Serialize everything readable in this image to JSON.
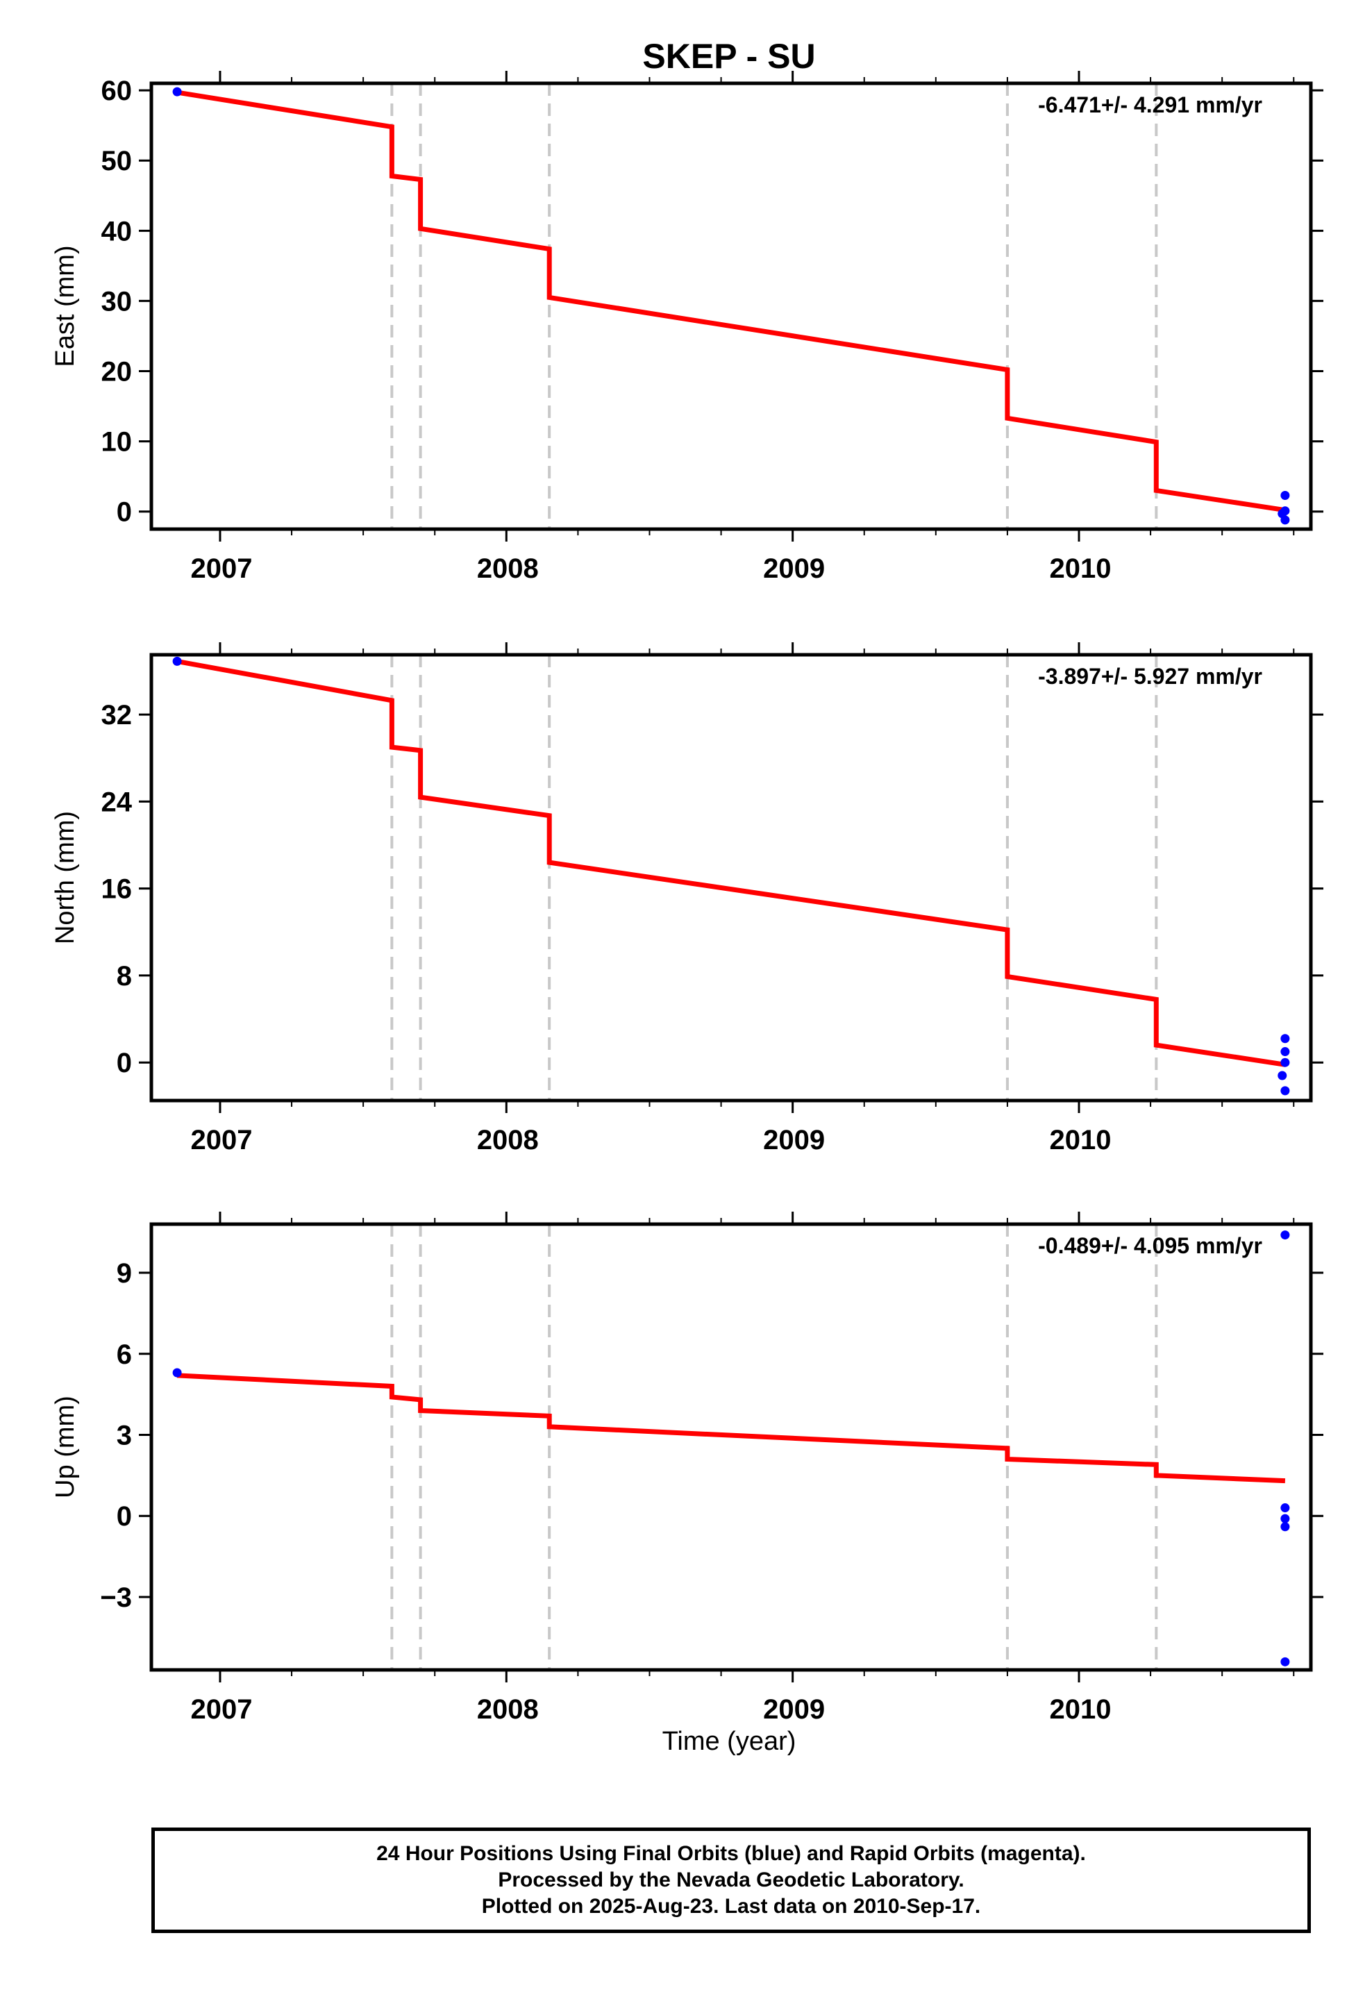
{
  "title": "SKEP - SU",
  "xlabel": "Time (year)",
  "colors": {
    "model_line": "#ff0000",
    "final_orbits": "#0000ff",
    "steps": "#c8c8c8",
    "frame": "#000000"
  },
  "footer": {
    "line1": "24 Hour Positions Using Final Orbits (blue) and Rapid Orbits (magenta).",
    "line2": "Processed by the Nevada Geodetic Laboratory.",
    "line3": "Plotted on 2025-Aug-23. Last data on 2010-Sep-17."
  },
  "chart_data": [
    {
      "type": "scatter",
      "ylabel": "East (mm)",
      "rate_label": "-6.471+/- 4.291 mm/yr",
      "xlim": [
        2006.76,
        2010.81
      ],
      "ylim": [
        -2.5,
        61
      ],
      "yticks": [
        0,
        10,
        20,
        30,
        40,
        50,
        60
      ],
      "xticks": [
        2007,
        2008,
        2009,
        2010
      ],
      "steps": [
        2007.6,
        2007.7,
        2008.15,
        2009.75,
        2010.27
      ],
      "series": [
        {
          "kind": "line",
          "x": [
            2006.85,
            2007.6,
            2007.6,
            2007.7,
            2007.7,
            2008.15,
            2008.15,
            2009.75,
            2009.75,
            2010.27,
            2010.27,
            2010.72
          ],
          "y": [
            59.7,
            54.8,
            47.8,
            47.3,
            40.3,
            37.4,
            30.5,
            20.2,
            13.3,
            9.9,
            3.0,
            0.2
          ]
        },
        {
          "kind": "points",
          "x": [
            2006.85,
            2010.71,
            2010.72,
            2010.72,
            2010.72
          ],
          "y": [
            59.8,
            -0.3,
            0.1,
            2.3,
            -1.2
          ]
        }
      ]
    },
    {
      "type": "scatter",
      "ylabel": "North (mm)",
      "rate_label": "-3.897+/- 5.927 mm/yr",
      "xlim": [
        2006.76,
        2010.81
      ],
      "ylim": [
        -3.5,
        37.5
      ],
      "yticks": [
        0,
        8,
        16,
        24,
        32
      ],
      "xticks": [
        2007,
        2008,
        2009,
        2010
      ],
      "steps": [
        2007.6,
        2007.7,
        2008.15,
        2009.75,
        2010.27
      ],
      "series": [
        {
          "kind": "line",
          "x": [
            2006.85,
            2007.6,
            2007.6,
            2007.7,
            2007.7,
            2008.15,
            2008.15,
            2009.75,
            2009.75,
            2010.27,
            2010.27,
            2010.72
          ],
          "y": [
            36.9,
            33.3,
            29.0,
            28.7,
            24.4,
            22.7,
            18.4,
            12.2,
            7.9,
            5.8,
            1.6,
            -0.2
          ]
        },
        {
          "kind": "points",
          "x": [
            2006.85,
            2010.71,
            2010.72,
            2010.72,
            2010.72,
            2010.72
          ],
          "y": [
            36.9,
            -1.2,
            0.0,
            1.0,
            2.2,
            -2.6
          ]
        }
      ]
    },
    {
      "type": "scatter",
      "ylabel": "Up (mm)",
      "rate_label": "-0.489+/- 4.095 mm/yr",
      "xlim": [
        2006.76,
        2010.81
      ],
      "ylim": [
        -5.7,
        10.8
      ],
      "yticks": [
        -3,
        0,
        3,
        6,
        9
      ],
      "xticks": [
        2007,
        2008,
        2009,
        2010
      ],
      "steps": [
        2007.6,
        2007.7,
        2008.15,
        2009.75,
        2010.27
      ],
      "series": [
        {
          "kind": "line",
          "x": [
            2006.85,
            2007.6,
            2007.6,
            2007.7,
            2007.7,
            2008.15,
            2008.15,
            2009.75,
            2009.75,
            2010.27,
            2010.27,
            2010.72
          ],
          "y": [
            5.2,
            4.8,
            4.4,
            4.3,
            3.9,
            3.7,
            3.3,
            2.5,
            2.1,
            1.9,
            1.5,
            1.3
          ]
        },
        {
          "kind": "points",
          "x": [
            2006.85,
            2010.72,
            2010.72,
            2010.72,
            2010.72,
            2010.72
          ],
          "y": [
            5.3,
            10.4,
            0.3,
            -0.1,
            -0.4,
            -5.4
          ]
        }
      ]
    }
  ]
}
